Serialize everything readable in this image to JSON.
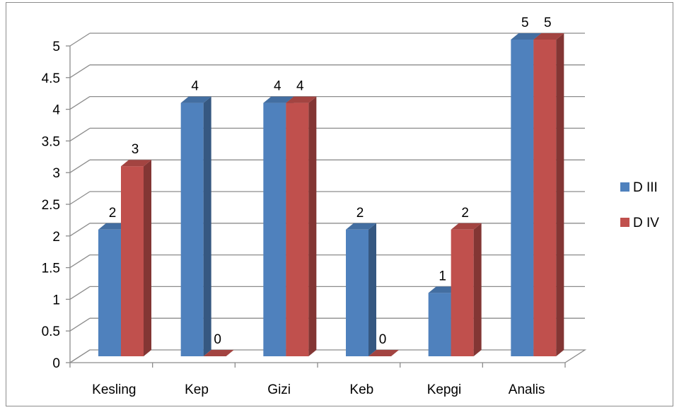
{
  "chart_data": {
    "type": "bar",
    "categories": [
      "Kesling",
      "Kep",
      "Gizi",
      "Keb",
      "Kepgi",
      "Analis"
    ],
    "series": [
      {
        "name": "D III",
        "values": [
          2,
          4,
          4,
          2,
          1,
          5
        ],
        "color": "#4f81bd"
      },
      {
        "name": "D IV",
        "values": [
          3,
          0,
          4,
          0,
          2,
          5
        ],
        "color": "#c0504d"
      }
    ],
    "y_ticks": [
      "0",
      "0.5",
      "1",
      "1.5",
      "2",
      "2.5",
      "3",
      "3.5",
      "4",
      "4.5",
      "5"
    ],
    "ylim": [
      0,
      5
    ],
    "grid": true,
    "legend_position": "right",
    "data_labels": true,
    "style": "3d-clustered-column"
  }
}
